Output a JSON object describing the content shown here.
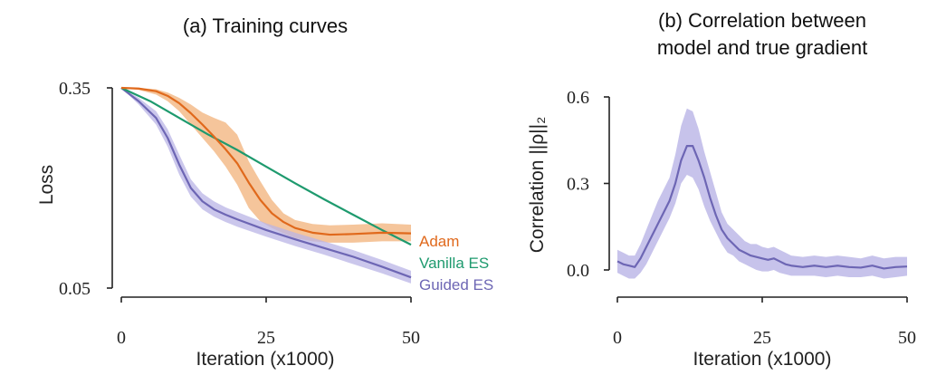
{
  "colors": {
    "adam": "#e0691c",
    "adam_band": "#f2b27a",
    "vanilla": "#1e9a6e",
    "guided": "#6d66b4",
    "guided_band": "#b9b4e6"
  },
  "chart_data": [
    {
      "type": "line",
      "title": "(a) Training curves",
      "xlabel": "Iteration (x1000)",
      "ylabel": "Loss",
      "xlim": [
        0,
        50
      ],
      "ylim": [
        0.05,
        0.35
      ],
      "xticks": [
        "0",
        "25",
        "50"
      ],
      "yticks": [
        "0.05",
        "0.35"
      ],
      "grid": false,
      "legend": "right-end labels",
      "series": [
        {
          "name": "Adam",
          "x": [
            0,
            3,
            6,
            8,
            10,
            12,
            14,
            16,
            18,
            20,
            22,
            24,
            26,
            28,
            30,
            33,
            36,
            40,
            45,
            50
          ],
          "values": [
            0.35,
            0.349,
            0.345,
            0.338,
            0.327,
            0.312,
            0.295,
            0.277,
            0.258,
            0.237,
            0.208,
            0.182,
            0.162,
            0.149,
            0.14,
            0.133,
            0.13,
            0.131,
            0.133,
            0.132
          ],
          "lower": [
            0.35,
            0.347,
            0.34,
            0.33,
            0.315,
            0.295,
            0.275,
            0.255,
            0.232,
            0.205,
            0.17,
            0.15,
            0.14,
            0.132,
            0.125,
            0.12,
            0.118,
            0.118,
            0.12,
            0.12
          ],
          "upper": [
            0.35,
            0.35,
            0.348,
            0.343,
            0.335,
            0.325,
            0.313,
            0.305,
            0.298,
            0.28,
            0.24,
            0.21,
            0.182,
            0.162,
            0.152,
            0.146,
            0.144,
            0.145,
            0.147,
            0.145
          ]
        },
        {
          "name": "Vanilla ES",
          "x": [
            0,
            5,
            10,
            15,
            20,
            25,
            30,
            35,
            40,
            45,
            50
          ],
          "values": [
            0.35,
            0.33,
            0.305,
            0.28,
            0.257,
            0.232,
            0.207,
            0.183,
            0.16,
            0.137,
            0.115
          ]
        },
        {
          "name": "Guided ES",
          "x": [
            0,
            3,
            6,
            8,
            10,
            12,
            14,
            16,
            18,
            20,
            25,
            30,
            35,
            40,
            45,
            50
          ],
          "values": [
            0.35,
            0.33,
            0.305,
            0.275,
            0.235,
            0.2,
            0.18,
            0.168,
            0.16,
            0.153,
            0.137,
            0.123,
            0.11,
            0.097,
            0.082,
            0.066
          ],
          "lower": [
            0.35,
            0.325,
            0.295,
            0.262,
            0.22,
            0.187,
            0.168,
            0.157,
            0.149,
            0.142,
            0.127,
            0.113,
            0.1,
            0.086,
            0.072,
            0.057
          ],
          "upper": [
            0.35,
            0.335,
            0.315,
            0.288,
            0.25,
            0.213,
            0.192,
            0.18,
            0.171,
            0.164,
            0.147,
            0.133,
            0.12,
            0.107,
            0.092,
            0.076
          ]
        }
      ]
    },
    {
      "type": "line",
      "title": [
        "(b) Correlation between",
        "model and true gradient"
      ],
      "xlabel": "Iteration (x1000)",
      "ylabel": "Correlation ||ρ||₂",
      "xlim": [
        0,
        50
      ],
      "ylim": [
        -0.02,
        0.6
      ],
      "xticks": [
        "0",
        "25",
        "50"
      ],
      "yticks": [
        "0.0",
        "0.3",
        "0.6"
      ],
      "grid": false,
      "series": [
        {
          "x": [
            0,
            1,
            2,
            3,
            4,
            5,
            6,
            7,
            8,
            9,
            10,
            11,
            12,
            13,
            14,
            15,
            16,
            17,
            18,
            19,
            20,
            21,
            22,
            23,
            24,
            25,
            26,
            27,
            28,
            29,
            30,
            32,
            34,
            36,
            38,
            40,
            42,
            44,
            46,
            48,
            50
          ],
          "values": [
            0.03,
            0.02,
            0.015,
            0.01,
            0.04,
            0.08,
            0.12,
            0.16,
            0.2,
            0.24,
            0.3,
            0.38,
            0.43,
            0.43,
            0.38,
            0.32,
            0.25,
            0.19,
            0.14,
            0.11,
            0.09,
            0.07,
            0.06,
            0.05,
            0.045,
            0.04,
            0.035,
            0.04,
            0.03,
            0.02,
            0.015,
            0.01,
            0.015,
            0.01,
            0.015,
            0.01,
            0.008,
            0.015,
            0.005,
            0.01,
            0.012
          ],
          "lower": [
            -0.01,
            -0.02,
            -0.03,
            -0.03,
            -0.01,
            0.02,
            0.06,
            0.1,
            0.14,
            0.18,
            0.23,
            0.3,
            0.33,
            0.32,
            0.28,
            0.22,
            0.17,
            0.13,
            0.09,
            0.06,
            0.05,
            0.03,
            0.02,
            0.01,
            0.0,
            -0.005,
            -0.005,
            0.0,
            -0.01,
            -0.015,
            -0.02,
            -0.02,
            -0.02,
            -0.025,
            -0.02,
            -0.025,
            -0.025,
            -0.02,
            -0.03,
            -0.025,
            -0.02
          ],
          "upper": [
            0.07,
            0.06,
            0.05,
            0.05,
            0.09,
            0.14,
            0.19,
            0.24,
            0.28,
            0.32,
            0.4,
            0.5,
            0.56,
            0.55,
            0.49,
            0.41,
            0.34,
            0.27,
            0.2,
            0.16,
            0.14,
            0.12,
            0.1,
            0.09,
            0.09,
            0.08,
            0.075,
            0.08,
            0.07,
            0.06,
            0.05,
            0.045,
            0.05,
            0.045,
            0.05,
            0.045,
            0.04,
            0.05,
            0.04,
            0.045,
            0.045
          ]
        }
      ]
    }
  ]
}
